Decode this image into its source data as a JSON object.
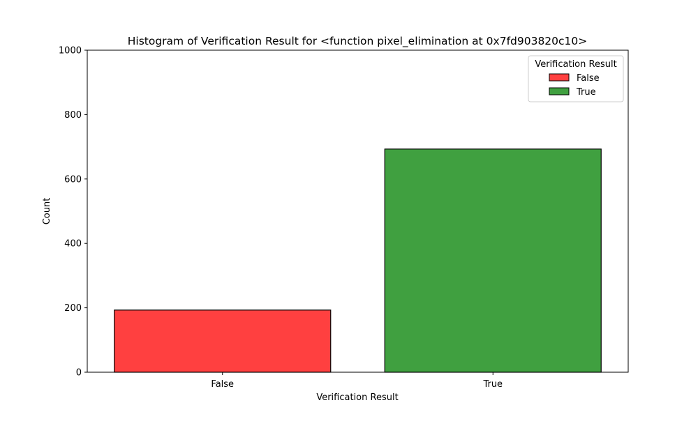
{
  "chart_data": {
    "type": "bar",
    "title": "Histogram of Verification Result for <function pixel_elimination at 0x7fd903820c10>",
    "xlabel": "Verification Result",
    "ylabel": "Count",
    "categories": [
      "False",
      "True"
    ],
    "values": [
      193,
      693
    ],
    "colors": [
      "#ff4040",
      "#40a040"
    ],
    "ylim": [
      0,
      1000
    ],
    "yticks": [
      0,
      200,
      400,
      600,
      800,
      1000
    ],
    "grid": false,
    "legend": {
      "title": "Verification Result",
      "placement": "top-right",
      "entries": [
        {
          "label": "False",
          "color": "#ff4040"
        },
        {
          "label": "True",
          "color": "#40a040"
        }
      ]
    }
  }
}
